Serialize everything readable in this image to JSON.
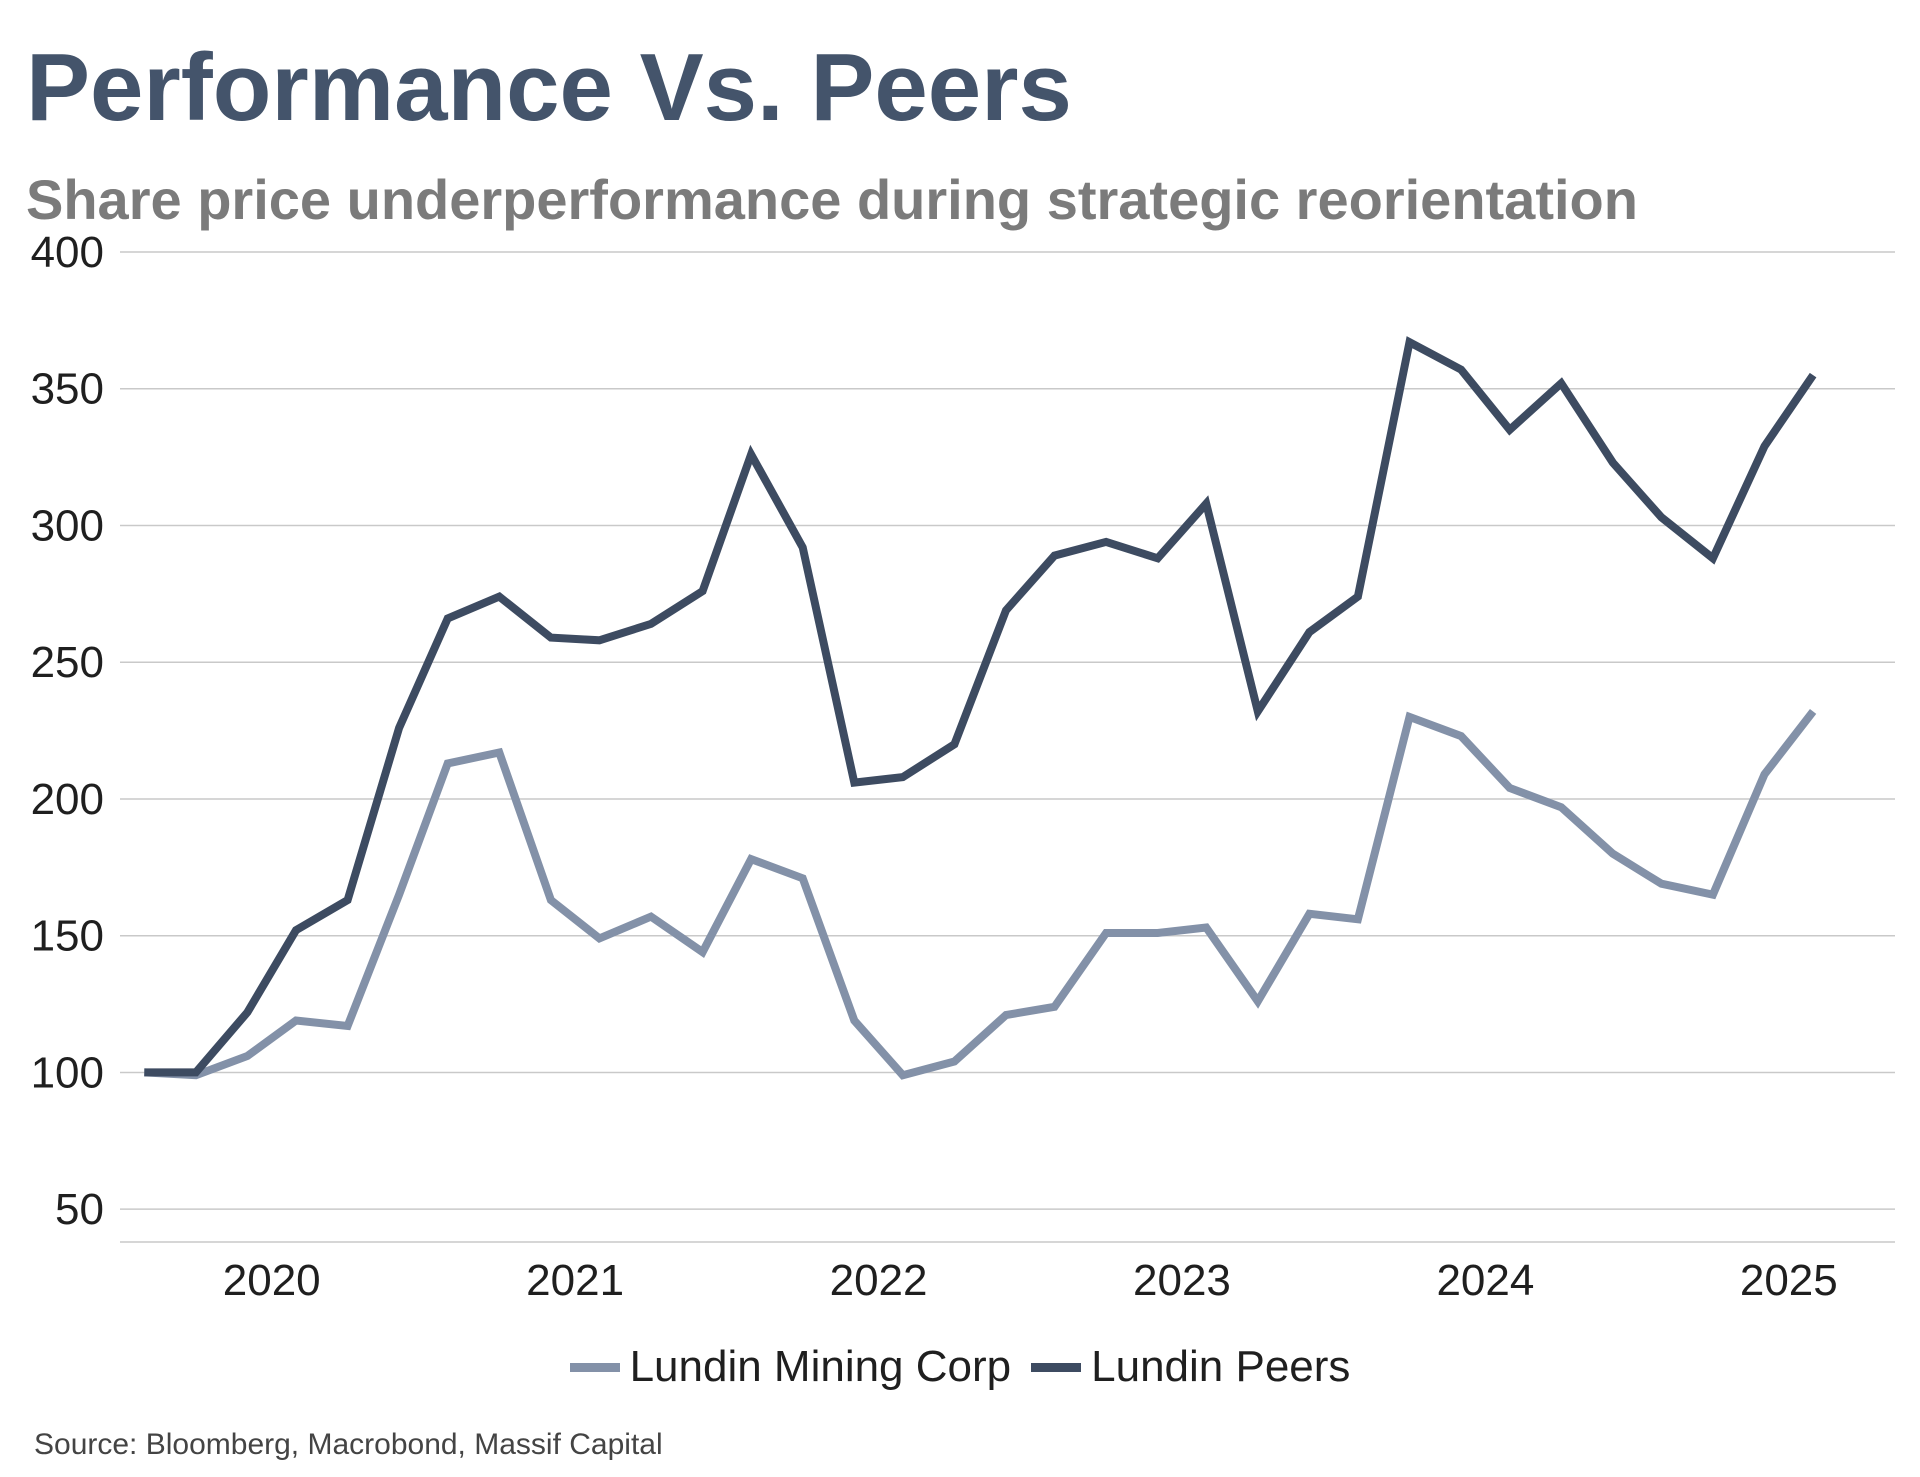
{
  "title": "Performance Vs. Peers",
  "subtitle": "Share price underperformance during strategic reorientation",
  "source": "Source: Bloomberg, Macrobond, Massif Capital",
  "chart_data": {
    "type": "line",
    "title": "Performance Vs. Peers",
    "subtitle": "Share price underperformance during strategic reorientation",
    "xlabel": "",
    "ylabel": "",
    "ylim": [
      38,
      400
    ],
    "yticks": [
      50,
      100,
      150,
      200,
      250,
      300,
      350,
      400
    ],
    "xlim": [
      2019.5,
      2025.35
    ],
    "xticks": [
      {
        "value": 2020,
        "label": "2020"
      },
      {
        "value": 2021,
        "label": "2021"
      },
      {
        "value": 2022,
        "label": "2022"
      },
      {
        "value": 2023,
        "label": "2023"
      },
      {
        "value": 2024,
        "label": "2024"
      },
      {
        "value": 2025,
        "label": "2025"
      }
    ],
    "grid": true,
    "legend": "bottom-center",
    "x": [
      2019.58,
      2019.75,
      2019.92,
      2020.08,
      2020.25,
      2020.42,
      2020.58,
      2020.75,
      2020.92,
      2021.08,
      2021.25,
      2021.42,
      2021.58,
      2021.75,
      2021.92,
      2022.08,
      2022.25,
      2022.42,
      2022.58,
      2022.75,
      2022.92,
      2023.08,
      2023.25,
      2023.42,
      2023.58,
      2023.75,
      2023.92,
      2024.08,
      2024.25,
      2024.42,
      2024.58,
      2024.75,
      2024.92,
      2025.08
    ],
    "series": [
      {
        "name": "Lundin Mining Corp",
        "color": "#8391a8",
        "values": [
          100,
          99,
          106,
          119,
          117,
          165,
          213,
          217,
          163,
          149,
          157,
          144,
          178,
          171,
          119,
          99,
          104,
          121,
          124,
          151,
          151,
          153,
          126,
          158,
          156,
          230,
          223,
          204,
          197,
          180,
          169,
          165,
          209,
          232
        ]
      },
      {
        "name": "Lundin Peers",
        "color": "#3d4b61",
        "values": [
          100,
          100,
          122,
          152,
          163,
          226,
          266,
          274,
          259,
          258,
          264,
          276,
          326,
          292,
          206,
          208,
          220,
          269,
          289,
          294,
          288,
          308,
          232,
          261,
          274,
          367,
          357,
          335,
          352,
          323,
          303,
          288,
          329,
          355
        ]
      }
    ]
  }
}
